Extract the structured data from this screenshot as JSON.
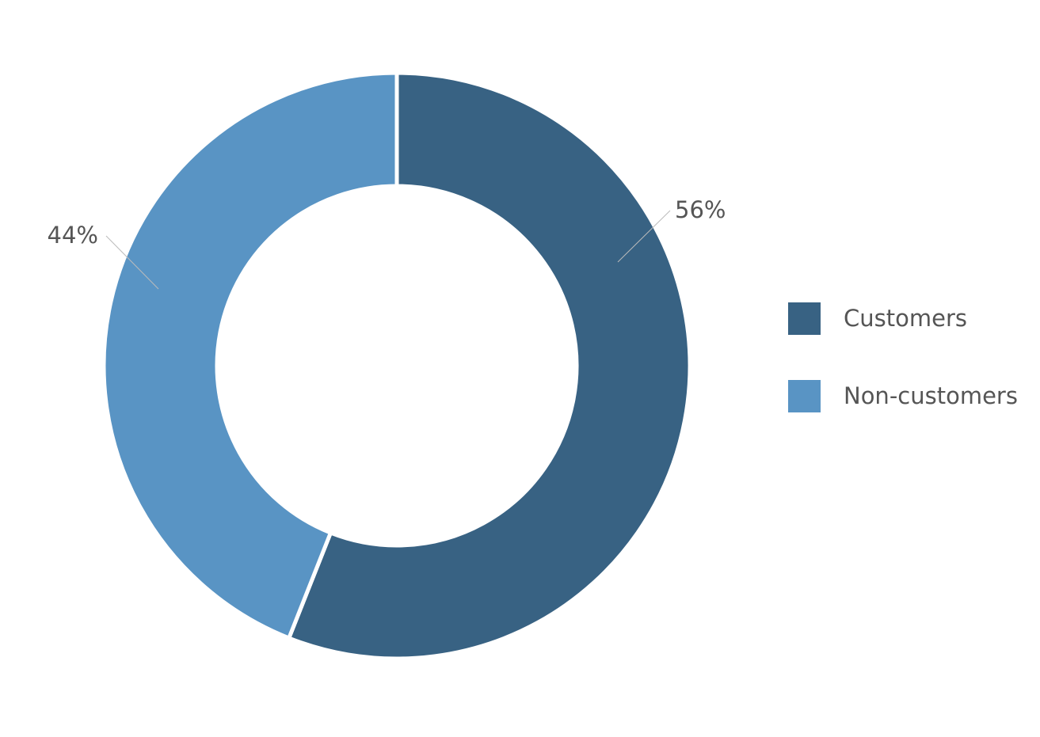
{
  "chart_data": {
    "type": "pie",
    "variant": "donut",
    "title": "",
    "categories": [
      "Customers",
      "Non-customers"
    ],
    "values": [
      56,
      44
    ],
    "labels": [
      "56%",
      "44%"
    ],
    "unit": "%",
    "colors": [
      "#386283",
      "#5994c4"
    ],
    "legend": {
      "position": "right",
      "entries": [
        "Customers",
        "Non-customers"
      ]
    }
  }
}
